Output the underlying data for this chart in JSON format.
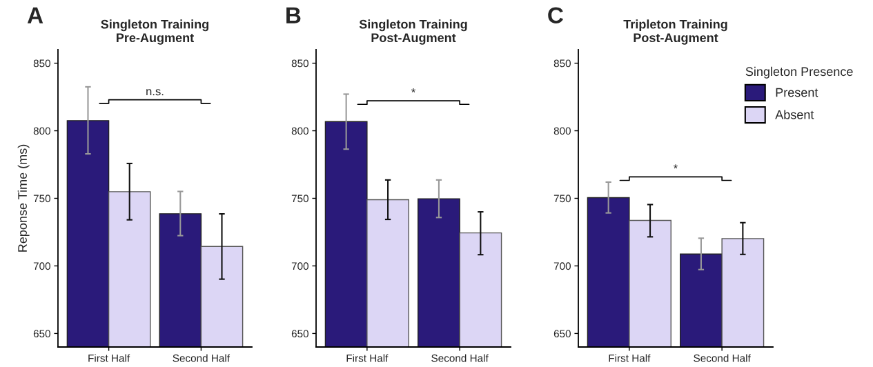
{
  "chart_data": [
    {
      "type": "bar",
      "title": "Singleton Training\nPre-Augment",
      "ylabel": "Reponse Time (ms)",
      "categories": [
        "First Half",
        "Second Half"
      ],
      "ylim": [
        640,
        860
      ],
      "yticks": [
        650,
        700,
        750,
        800,
        850
      ],
      "grid": false,
      "legend": false,
      "series": [
        {
          "color": "#2a1a7a",
          "values": [
            807.5,
            738.6
          ],
          "errors": [
            [
              782.9,
              832.5
            ],
            [
              722.4,
              755.1
            ]
          ]
        },
        {
          "color": "#dcd6f5",
          "values": [
            754.9,
            714.4
          ],
          "errors": [
            [
              734.1,
              775.8
            ],
            [
              690.2,
              738.5
            ]
          ]
        }
      ],
      "annotations": [
        "A",
        "n.s."
      ]
    },
    {
      "type": "bar",
      "title": "Singleton Training\nPost-Augment",
      "categories": [
        "First Half",
        "Second Half"
      ],
      "ylim": [
        640,
        860
      ],
      "yticks": [
        650,
        700,
        750,
        800,
        850
      ],
      "grid": false,
      "legend": false,
      "series": [
        {
          "color": "#2a1a7a",
          "values": [
            806.8,
            749.7
          ],
          "errors": [
            [
              786.4,
              827.1
            ],
            [
              735.8,
              763.6
            ]
          ]
        },
        {
          "color": "#dcd6f5",
          "values": [
            749.0,
            724.4
          ],
          "errors": [
            [
              734.4,
              763.6
            ],
            [
              708.3,
              740.0
            ]
          ]
        }
      ],
      "annotations": [
        "B",
        "*"
      ]
    },
    {
      "type": "bar",
      "title": "Tripleton Training\nPost-Augment",
      "categories": [
        "First Half",
        "Second Half"
      ],
      "ylim": [
        640,
        860
      ],
      "yticks": [
        650,
        700,
        750,
        800,
        850
      ],
      "grid": false,
      "legend": "right",
      "legend_title": "Singleton Presence",
      "series": [
        {
          "name": "Present",
          "color": "#2a1a7a",
          "values": [
            750.5,
            708.8
          ],
          "errors": [
            [
              739.2,
              762.0
            ],
            [
              697.3,
              720.5
            ]
          ]
        },
        {
          "name": "Absent",
          "color": "#dcd6f5",
          "values": [
            733.7,
            720.2
          ],
          "errors": [
            [
              721.5,
              745.4
            ],
            [
              708.5,
              732.0
            ]
          ]
        }
      ],
      "annotations": [
        "C",
        "*"
      ]
    }
  ]
}
